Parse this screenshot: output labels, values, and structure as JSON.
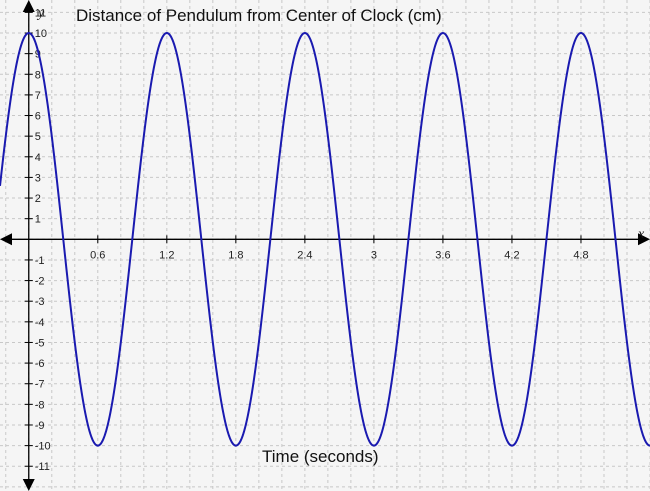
{
  "chart_data": {
    "type": "line",
    "title": "Distance of Pendulum from Center of Clock (cm)",
    "xlabel": "Time (seconds)",
    "ylabel": "",
    "x_axis_var": "x",
    "y_axis_var": "y",
    "xlim": [
      -0.25,
      5.4
    ],
    "ylim": [
      -12.2,
      11.6
    ],
    "x_ticks": [
      0.6,
      1.2,
      1.8,
      2.4,
      3,
      3.6,
      4.2,
      4.8
    ],
    "x_tick_labels": [
      "0.6",
      "1.2",
      "1.8",
      "2.4",
      "3",
      "3.6",
      "4.2",
      "4.8"
    ],
    "y_ticks": [
      -11,
      -10,
      -9,
      -8,
      -7,
      -6,
      -5,
      -4,
      -3,
      -2,
      -1,
      1,
      2,
      3,
      4,
      5,
      6,
      7,
      8,
      9,
      10,
      11
    ],
    "y_tick_labels": [
      "-11",
      "-10",
      "-9",
      "-8",
      "-7",
      "-6",
      "-5",
      "-4",
      "-3",
      "-2",
      "-1",
      "1",
      "2",
      "3",
      "4",
      "5",
      "6",
      "7",
      "8",
      "9",
      "10",
      "11"
    ],
    "grid": true,
    "series": [
      {
        "function": "y = 10 cos(2πx / 1.2)",
        "amplitude": 10,
        "period": 1.2,
        "phase": 0,
        "color": "#1a1ab0"
      }
    ]
  }
}
